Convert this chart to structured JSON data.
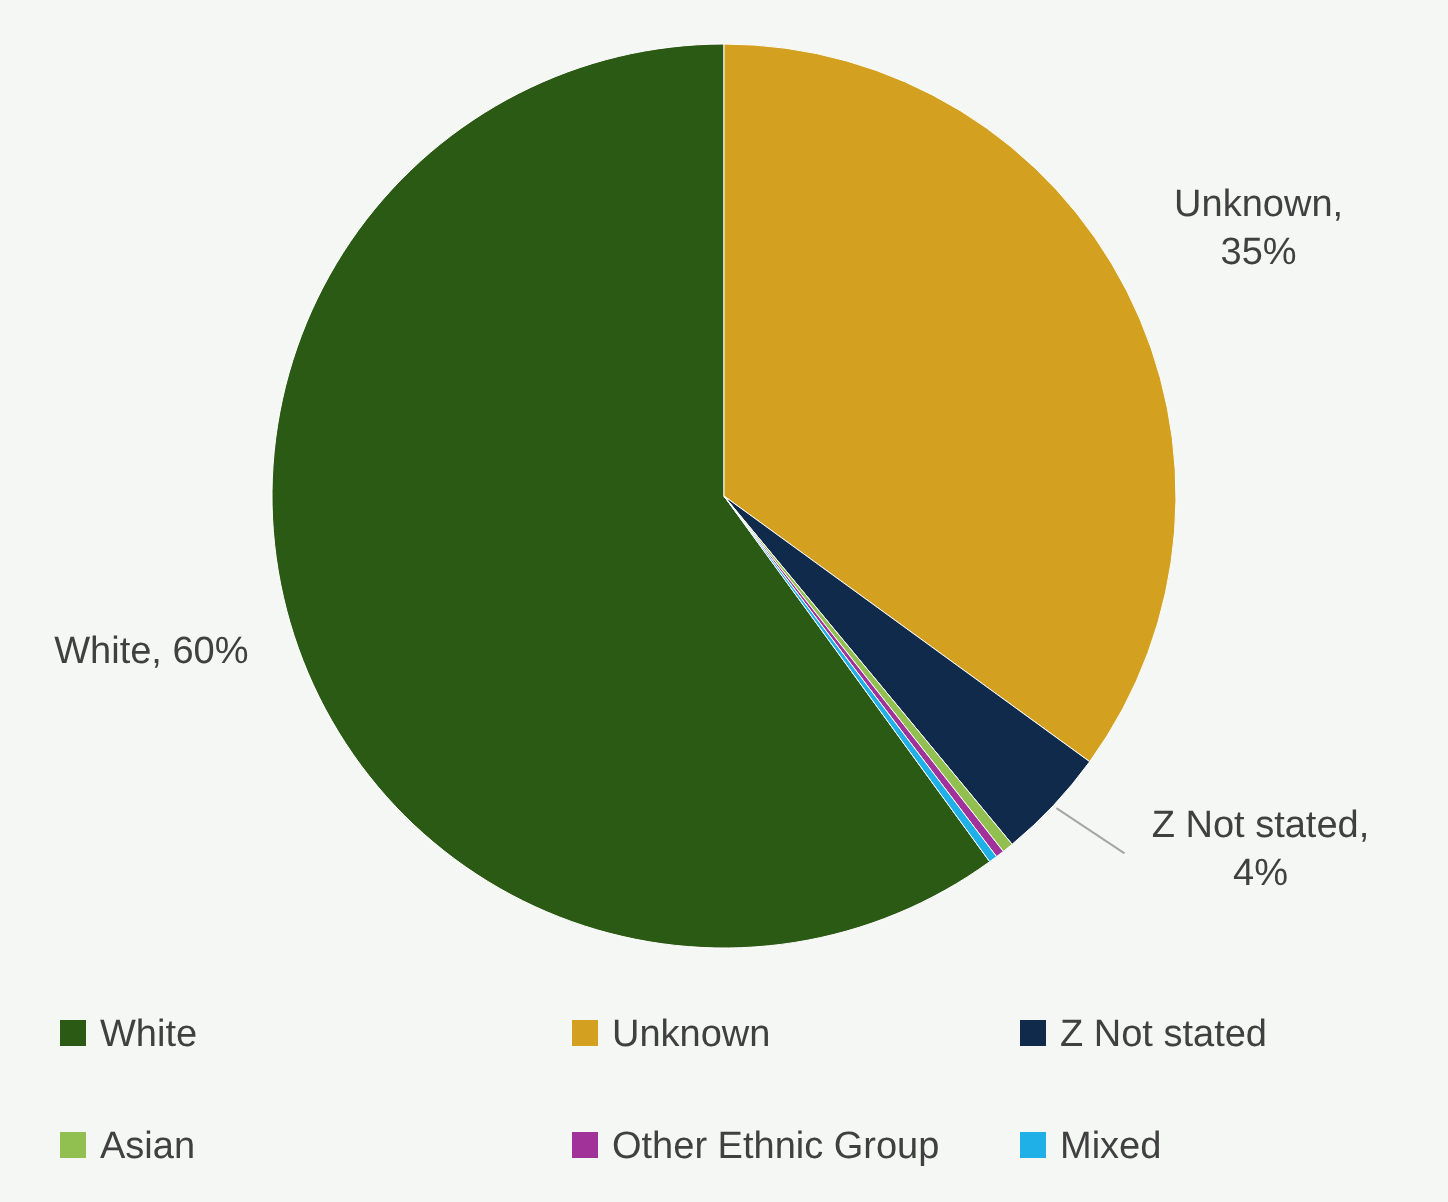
{
  "chart_data": {
    "type": "pie",
    "categories": [
      "White",
      "Unknown",
      "Z Not stated",
      "Asian",
      "Other Ethnic Group",
      "Mixed"
    ],
    "values": [
      60,
      35,
      4,
      0.4,
      0.3,
      0.3
    ],
    "colors": [
      "#2a5a13",
      "#d4a020",
      "#0f2a4a",
      "#92c050",
      "#a0329a",
      "#1fb0e8"
    ],
    "value_labels": [
      "White, 60%",
      "Unknown, 35%",
      "Z Not stated, 4%",
      null,
      null,
      null
    ],
    "legend": "bottom"
  }
}
